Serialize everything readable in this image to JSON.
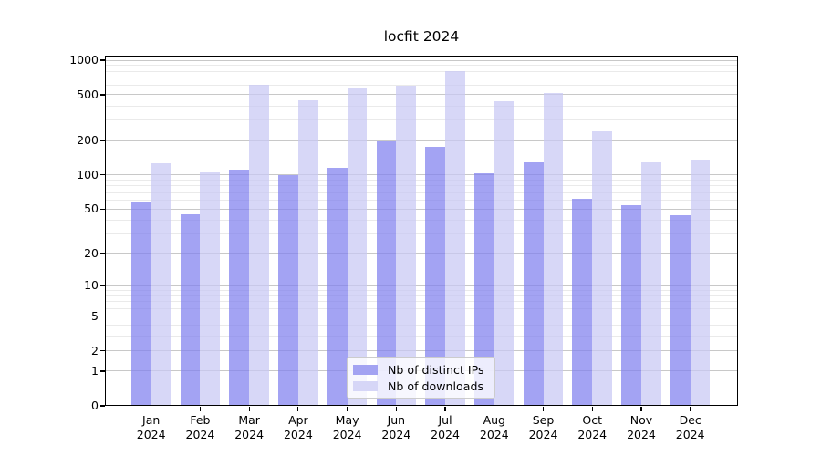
{
  "title": "locfit 2024",
  "chart_data": {
    "type": "bar",
    "title": "locfit 2024",
    "categories": [
      "Jan 2024",
      "Feb 2024",
      "Mar 2024",
      "Apr 2024",
      "May 2024",
      "Jun 2024",
      "Jul 2024",
      "Aug 2024",
      "Sep 2024",
      "Oct 2024",
      "Nov 2024",
      "Dec 2024"
    ],
    "months": [
      "Jan",
      "Feb",
      "Mar",
      "Apr",
      "May",
      "Jun",
      "Jul",
      "Aug",
      "Sep",
      "Oct",
      "Nov",
      "Dec"
    ],
    "x_tick_year": "2024",
    "series": [
      {
        "name": "Nb of distinct IPs",
        "color": "rgba(128,128,238,0.72)",
        "swatch_color": "#a3a3f2",
        "values": [
          58,
          45,
          112,
          100,
          116,
          196,
          175,
          104,
          129,
          62,
          54,
          44
        ]
      },
      {
        "name": "Nb of downloads",
        "color": "rgba(199,199,244,0.72)",
        "swatch_color": "#d6d6f7",
        "values": [
          126,
          105,
          615,
          445,
          577,
          605,
          805,
          437,
          517,
          242,
          130,
          137
        ]
      }
    ],
    "yscale": "log1p",
    "ylim": [
      0,
      1090
    ],
    "y_ticks": [
      0,
      1,
      2,
      5,
      10,
      20,
      50,
      100,
      200,
      500,
      1000
    ],
    "y_minor_gridlines": [
      3,
      4,
      6,
      7,
      8,
      9,
      30,
      40,
      60,
      70,
      80,
      90,
      300,
      400,
      600,
      700,
      800,
      900
    ],
    "grid": true,
    "legend_position": "lower center",
    "colors": {
      "major_grid": "#c8c8c8",
      "minor_grid": "#eaeaea",
      "spine": "#000000",
      "text": "#000000",
      "background": "#ffffff"
    }
  }
}
